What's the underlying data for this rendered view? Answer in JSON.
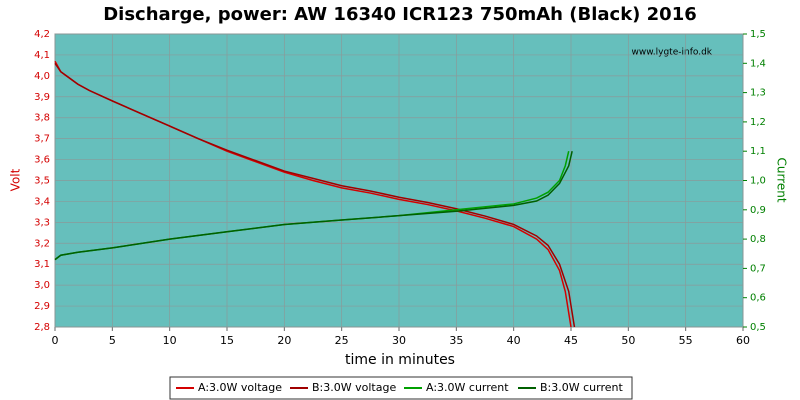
{
  "chart_data": {
    "type": "line",
    "title": "Discharge, power: AW 16340 ICR123 750mAh (Black) 2016",
    "watermark": "www.lygte-info.dk",
    "xlabel": "time in minutes",
    "ylabel": "Volt",
    "y2label": "Current",
    "xlim": [
      0,
      60
    ],
    "xticks": [
      0,
      5,
      10,
      15,
      20,
      25,
      30,
      35,
      40,
      45,
      50,
      55,
      60
    ],
    "ylim": [
      2.8,
      4.2
    ],
    "yticks": [
      {
        "value": 2.8,
        "label": "2,8"
      },
      {
        "value": 2.9,
        "label": "2,9"
      },
      {
        "value": 3.0,
        "label": "3,0"
      },
      {
        "value": 3.1,
        "label": "3,1"
      },
      {
        "value": 3.2,
        "label": "3,2"
      },
      {
        "value": 3.3,
        "label": "3,3"
      },
      {
        "value": 3.4,
        "label": "3,4"
      },
      {
        "value": 3.5,
        "label": "3,5"
      },
      {
        "value": 3.6,
        "label": "3,6"
      },
      {
        "value": 3.7,
        "label": "3,7"
      },
      {
        "value": 3.8,
        "label": "3,8"
      },
      {
        "value": 3.9,
        "label": "3,9"
      },
      {
        "value": 4.0,
        "label": "4,0"
      },
      {
        "value": 4.1,
        "label": "4,1"
      },
      {
        "value": 4.2,
        "label": "4,2"
      }
    ],
    "y2lim": [
      0.5,
      1.5
    ],
    "y2ticks": [
      {
        "value": 0.5,
        "label": "0,5"
      },
      {
        "value": 0.6,
        "label": "0,6"
      },
      {
        "value": 0.7,
        "label": "0,7"
      },
      {
        "value": 0.8,
        "label": "0,8"
      },
      {
        "value": 0.9,
        "label": "0,9"
      },
      {
        "value": 1.0,
        "label": "1,0"
      },
      {
        "value": 1.1,
        "label": "1,1"
      },
      {
        "value": 1.2,
        "label": "1,2"
      },
      {
        "value": 1.3,
        "label": "1,3"
      },
      {
        "value": 1.4,
        "label": "1,4"
      },
      {
        "value": 1.5,
        "label": "1,5"
      }
    ],
    "grid": true,
    "series": [
      {
        "name": "A:3.0W voltage",
        "color": "#d40000",
        "x": [
          0,
          0.5,
          1,
          2,
          3,
          5,
          7.5,
          10,
          12.5,
          15,
          17.5,
          20,
          22.5,
          25,
          27.5,
          30,
          32.5,
          35,
          37.5,
          40,
          42,
          43,
          44,
          44.5,
          45
        ],
        "values": [
          4.07,
          4.02,
          4.0,
          3.96,
          3.93,
          3.88,
          3.82,
          3.76,
          3.7,
          3.64,
          3.59,
          3.54,
          3.5,
          3.465,
          3.44,
          3.41,
          3.385,
          3.355,
          3.32,
          3.28,
          3.22,
          3.17,
          3.07,
          2.97,
          2.8
        ]
      },
      {
        "name": "B:3.0W voltage",
        "color": "#a00000",
        "x": [
          0,
          0.5,
          1,
          2,
          3,
          5,
          7.5,
          10,
          12.5,
          15,
          17.5,
          20,
          22.5,
          25,
          27.5,
          30,
          32.5,
          35,
          37.5,
          40,
          42,
          43,
          44,
          44.8,
          45.3
        ],
        "values": [
          4.06,
          4.02,
          4.0,
          3.96,
          3.93,
          3.88,
          3.82,
          3.76,
          3.7,
          3.645,
          3.595,
          3.545,
          3.51,
          3.475,
          3.45,
          3.42,
          3.395,
          3.365,
          3.33,
          3.29,
          3.235,
          3.19,
          3.1,
          2.97,
          2.8
        ]
      },
      {
        "name": "A:3.0W current",
        "color": "#00a000",
        "x": [
          0,
          0.5,
          2,
          5,
          10,
          15,
          20,
          25,
          30,
          35,
          40,
          42,
          43,
          44,
          44.5,
          44.8
        ],
        "values": [
          0.73,
          0.745,
          0.755,
          0.77,
          0.8,
          0.825,
          0.85,
          0.865,
          0.88,
          0.9,
          0.92,
          0.94,
          0.96,
          1.0,
          1.05,
          1.1
        ]
      },
      {
        "name": "B:3.0W current",
        "color": "#006000",
        "x": [
          0,
          0.5,
          2,
          5,
          10,
          15,
          20,
          25,
          30,
          35,
          40,
          42,
          43,
          44,
          44.8,
          45.1
        ],
        "values": [
          0.73,
          0.745,
          0.755,
          0.77,
          0.8,
          0.825,
          0.85,
          0.865,
          0.88,
          0.895,
          0.915,
          0.93,
          0.95,
          0.99,
          1.05,
          1.1
        ],
        "axis_pad": null
      }
    ]
  }
}
